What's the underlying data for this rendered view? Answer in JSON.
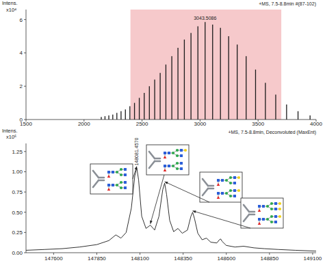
{
  "chart_data": [
    {
      "type": "stem",
      "title": "+MS, 7.5-8.8min #(87-102)",
      "y_label": "Intens.",
      "y_scale_label": "x10⁴",
      "x": [
        2148.6,
        2180.7,
        2213.7,
        2247.8,
        2282.9,
        2319.1,
        2356.5,
        2395.1,
        2435.0,
        2476.3,
        2518.9,
        2563.1,
        2608.9,
        2656.3,
        2705.4,
        2756.5,
        2809.5,
        2864.5,
        2921.8,
        2981.4,
        3043.5086,
        3108.2,
        3175.8,
        3246.3,
        3320.1,
        3397.3,
        3478.1,
        3563.0,
        3652.0,
        3745.6,
        3844.2,
        3948.0
      ],
      "values": [
        0.15,
        0.2,
        0.25,
        0.3,
        0.4,
        0.5,
        0.6,
        0.8,
        1.0,
        1.3,
        1.6,
        2.0,
        2.4,
        2.8,
        3.3,
        3.8,
        4.3,
        4.8,
        5.2,
        5.6,
        5.85,
        5.7,
        5.5,
        5.0,
        4.5,
        3.8,
        3.0,
        2.2,
        1.5,
        0.9,
        0.5,
        0.25
      ],
      "color": "#1a1a1a",
      "xlim": [
        1500,
        4000
      ],
      "xticks": [
        1500,
        2000,
        2500,
        3000,
        3500,
        4000
      ],
      "ylim": [
        0,
        6.6
      ],
      "yticks": [
        0,
        2,
        4,
        6
      ],
      "highlight_range": [
        2400,
        3700
      ],
      "highlight_color": "#f6c9cb",
      "annotations": [
        {
          "x": 3043.5086,
          "y": 5.85,
          "text": "3043.5086"
        }
      ]
    },
    {
      "type": "line",
      "title": "+MS, 7.5-8.8min, Deconvoluted (MaxEnt)",
      "y_label": "Intens.",
      "y_scale_label": "x10⁶",
      "x": [
        147440,
        147550,
        147650,
        147750,
        147850,
        147920,
        147960,
        147990,
        148020,
        148050,
        148070,
        148081.457,
        148092,
        148110,
        148135,
        148160,
        148185,
        148210,
        148232,
        148243,
        148254,
        148272,
        148295,
        148320,
        148345,
        148375,
        148395,
        148405,
        148416,
        148435,
        148460,
        148485,
        148510,
        148545,
        148560,
        148567,
        148576,
        148600,
        148650,
        148700,
        148760,
        148820,
        148900,
        149000,
        149120
      ],
      "values": [
        0.03,
        0.04,
        0.05,
        0.07,
        0.1,
        0.15,
        0.22,
        0.18,
        0.25,
        0.55,
        0.95,
        1.05,
        0.9,
        0.45,
        0.3,
        0.34,
        0.28,
        0.45,
        0.78,
        0.86,
        0.72,
        0.4,
        0.26,
        0.3,
        0.24,
        0.28,
        0.45,
        0.5,
        0.42,
        0.24,
        0.16,
        0.18,
        0.13,
        0.12,
        0.16,
        0.17,
        0.14,
        0.09,
        0.07,
        0.08,
        0.06,
        0.05,
        0.04,
        0.03,
        0.02
      ],
      "color": "#1a1a1a",
      "xlim": [
        147440,
        149120
      ],
      "xticks": [
        147600,
        147850,
        148100,
        148350,
        148600,
        148850,
        149100
      ],
      "ylim": [
        0,
        1.35
      ],
      "yticks": [
        {
          "value": 0,
          "label": "0.00"
        },
        {
          "value": 0.25,
          "label": "0.25"
        },
        {
          "value": 0.5,
          "label": "0.50"
        },
        {
          "value": 0.75,
          "label": "0.75"
        },
        {
          "value": 1.0,
          "label": "1.00"
        },
        {
          "value": 1.25,
          "label": "1.25"
        }
      ],
      "annotations": [
        {
          "x": 148081.457,
          "y": 1.05,
          "text": "148081.4570"
        }
      ]
    }
  ]
}
